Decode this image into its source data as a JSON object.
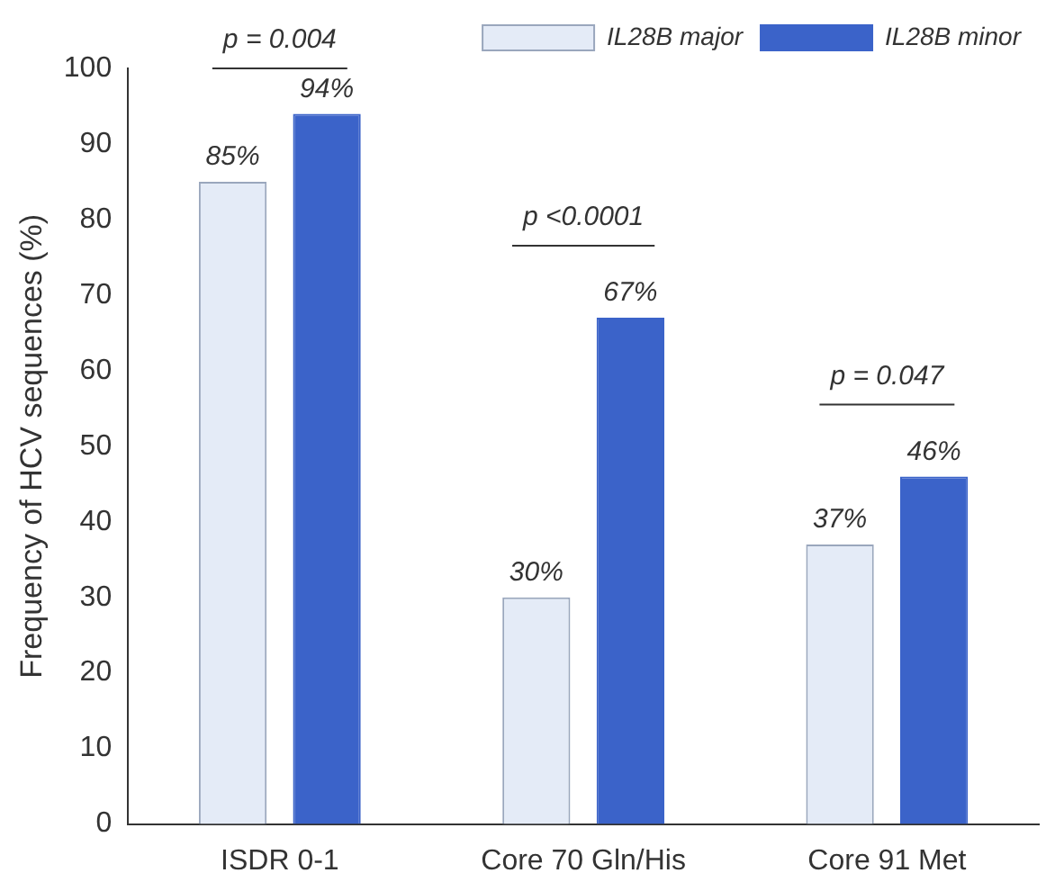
{
  "chart_data": {
    "type": "bar",
    "ylabel": "Frequency of HCV sequences (%)",
    "categories": [
      "ISDR 0-1",
      "Core 70 Gln/His",
      "Core 91 Met"
    ],
    "series": [
      {
        "name": "IL28B major",
        "color": "#e4ebf7",
        "values": [
          85,
          30,
          37
        ],
        "value_labels": [
          "85%",
          "30%",
          "37%"
        ]
      },
      {
        "name": "IL28B minor",
        "color": "#3b63c9",
        "values": [
          94,
          67,
          46
        ],
        "value_labels": [
          "94%",
          "67%",
          "46%"
        ]
      }
    ],
    "ylim": [
      0,
      100
    ],
    "yticks": [
      0,
      10,
      20,
      30,
      40,
      50,
      60,
      70,
      80,
      90,
      100
    ],
    "grid": false,
    "legend": "top right",
    "annotations": [
      "p = 0.004",
      "p <0.0001",
      "p = 0.047"
    ]
  }
}
